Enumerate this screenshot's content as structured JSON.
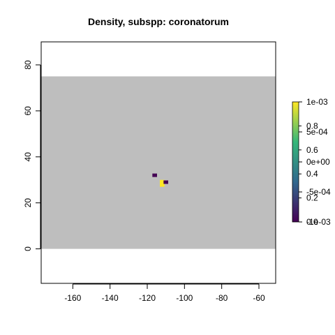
{
  "chart_data": {
    "type": "heatmap",
    "title": "Density, subspp: coronatorum",
    "xlabel": "",
    "ylabel": "",
    "xlim": [
      -177,
      -51
    ],
    "ylim": [
      -15,
      90
    ],
    "x_ticks": [
      -160,
      -140,
      -120,
      -100,
      -80,
      -60
    ],
    "x_tick_labels": [
      "-160",
      "-140",
      "-120",
      "-100",
      "-80",
      "-60"
    ],
    "y_ticks": [
      0,
      20,
      40,
      60,
      80
    ],
    "y_tick_labels": [
      "0",
      "20",
      "40",
      "60",
      "80"
    ],
    "background_region": {
      "x": [
        -177,
        -51
      ],
      "y": [
        0,
        75
      ],
      "color": "#bebebe"
    },
    "cells": [
      {
        "x": -116,
        "y": 32,
        "w": 2.5,
        "h": 1.5,
        "value": 0.0,
        "color": "#440154"
      },
      {
        "x": -112,
        "y": 28.5,
        "w": 2.5,
        "h": 3.0,
        "value": 1.0,
        "color": "#fde725"
      },
      {
        "x": -110,
        "y": 29,
        "w": 2.5,
        "h": 1.5,
        "value": 0.0,
        "color": "#440154"
      }
    ],
    "legend": {
      "placement": "right",
      "colors": [
        "#440154",
        "#31688e",
        "#35b779",
        "#fde725"
      ],
      "ticks_a": [
        {
          "pos": 0.0,
          "label": "0.0"
        },
        {
          "pos": 0.2,
          "label": "0.2"
        },
        {
          "pos": 0.4,
          "label": "0.4"
        },
        {
          "pos": 0.6,
          "label": "0.6"
        },
        {
          "pos": 0.8,
          "label": "0.8"
        }
      ],
      "ticks_b": [
        {
          "pos": 0.0,
          "label": "-1e-03"
        },
        {
          "pos": 0.25,
          "label": "-5e-04"
        },
        {
          "pos": 0.5,
          "label": "0e+00"
        },
        {
          "pos": 0.75,
          "label": "5e-04"
        },
        {
          "pos": 1.0,
          "label": "1e-03"
        }
      ]
    }
  }
}
